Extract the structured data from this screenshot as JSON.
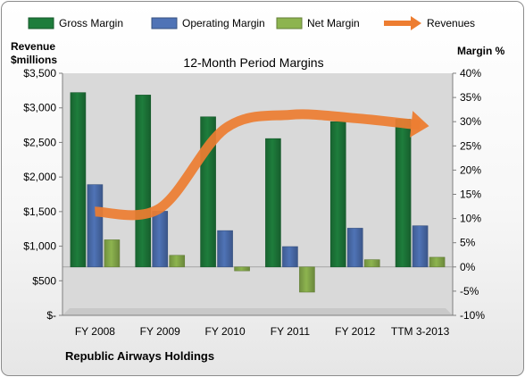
{
  "chart_data": {
    "type": "bar",
    "title": "12-Month Period Margins",
    "categories": [
      "FY 2008",
      "FY 2009",
      "FY 2010",
      "FY 2011",
      "FY 2012",
      "TTM 3-2013"
    ],
    "series": [
      {
        "name": "Gross Margin",
        "axis": "right",
        "color": "#1e7d3c",
        "values": [
          36.0,
          35.5,
          31.0,
          26.5,
          30.0,
          30.5
        ]
      },
      {
        "name": "Operating Margin",
        "axis": "right",
        "color": "#4f73b6",
        "values": [
          17.0,
          11.5,
          7.5,
          4.2,
          8.0,
          8.5
        ]
      },
      {
        "name": "Net Margin",
        "axis": "right",
        "color": "#8db44f",
        "values": [
          5.6,
          2.4,
          -0.8,
          -5.2,
          1.5,
          2.0
        ]
      },
      {
        "name": "Revenues",
        "axis": "left",
        "type": "line",
        "color": "#ed7d31",
        "values": [
          1500,
          1550,
          2700,
          2900,
          2850,
          2750
        ]
      }
    ],
    "ylabel_left": "Revenue\n$millions",
    "ylabel_right": "Margin %",
    "ylim_left": [
      0,
      3500
    ],
    "ylim_right": [
      -10,
      40
    ],
    "yticks_left": [
      "$-",
      "$500",
      "$1,000",
      "$1,500",
      "$2,000",
      "$2,500",
      "$3,000",
      "$3,500"
    ],
    "yticks_right": [
      "-10%",
      "-5%",
      "0%",
      "5%",
      "10%",
      "15%",
      "20%",
      "25%",
      "30%",
      "35%",
      "40%"
    ],
    "grid": false,
    "legend": "top",
    "footer": "Republic Airways Holdings"
  }
}
